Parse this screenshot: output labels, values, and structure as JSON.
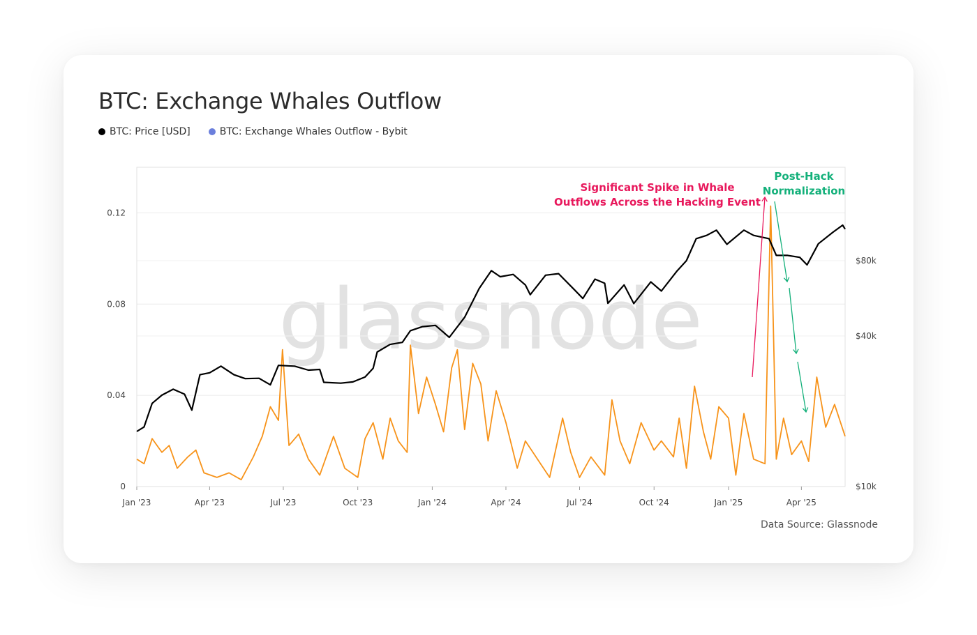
{
  "header": {
    "title": "BTC: Exchange Whales Outflow"
  },
  "legend": [
    {
      "label": "BTC: Price [USD]",
      "color": "#000000"
    },
    {
      "label": "BTC: Exchange Whales Outflow - Bybit",
      "color": "#6b7fdc"
    }
  ],
  "watermark": "glassnode",
  "source": "Data Source: Glassnode",
  "annotations": {
    "spike": [
      "Significant Spike in Whale",
      "Outflows Across the Hacking Event"
    ],
    "post_hack": [
      "Post-Hack",
      "Normalization"
    ],
    "spike_color": "#e8185c",
    "post_hack_color": "#13b07a"
  },
  "chart_data": {
    "type": "line",
    "x_ticks": [
      "Jan '23",
      "Apr '23",
      "Jul '23",
      "Oct '23",
      "Jan '24",
      "Apr '24",
      "Jul '24",
      "Oct '24",
      "Jan '25",
      "Apr '25"
    ],
    "y_left_ticks": [
      0,
      0.04,
      0.08,
      0.12
    ],
    "y_left_tick_labels": [
      "0",
      "0.04",
      "0.08",
      "0.12"
    ],
    "y_left_range": [
      0,
      0.14
    ],
    "y_right_ticks": [
      10000,
      40000,
      80000
    ],
    "y_right_tick_labels": [
      "$10k",
      "$40k",
      "$80k"
    ],
    "y_right_scale": "log",
    "x_range": [
      "2023-01-01",
      "2025-05-25"
    ],
    "series": [
      {
        "name": "BTC: Price [USD]",
        "axis": "right",
        "color": "#000000",
        "points": [
          [
            "2023-01-01",
            16600
          ],
          [
            "2023-01-10",
            17300
          ],
          [
            "2023-01-20",
            21500
          ],
          [
            "2023-02-01",
            23200
          ],
          [
            "2023-02-15",
            24500
          ],
          [
            "2023-03-01",
            23400
          ],
          [
            "2023-03-10",
            20200
          ],
          [
            "2023-03-20",
            28000
          ],
          [
            "2023-04-01",
            28500
          ],
          [
            "2023-04-15",
            30300
          ],
          [
            "2023-05-01",
            28000
          ],
          [
            "2023-05-15",
            27000
          ],
          [
            "2023-06-01",
            27100
          ],
          [
            "2023-06-15",
            25500
          ],
          [
            "2023-06-25",
            30500
          ],
          [
            "2023-07-15",
            30300
          ],
          [
            "2023-08-01",
            29200
          ],
          [
            "2023-08-15",
            29400
          ],
          [
            "2023-08-20",
            26100
          ],
          [
            "2023-09-10",
            25900
          ],
          [
            "2023-09-25",
            26200
          ],
          [
            "2023-10-10",
            27400
          ],
          [
            "2023-10-20",
            29700
          ],
          [
            "2023-10-25",
            34500
          ],
          [
            "2023-11-10",
            37000
          ],
          [
            "2023-11-25",
            37700
          ],
          [
            "2023-12-05",
            42000
          ],
          [
            "2023-12-20",
            43600
          ],
          [
            "2024-01-05",
            44100
          ],
          [
            "2024-01-22",
            39500
          ],
          [
            "2024-02-10",
            47500
          ],
          [
            "2024-02-28",
            62000
          ],
          [
            "2024-03-14",
            73000
          ],
          [
            "2024-03-25",
            69000
          ],
          [
            "2024-04-10",
            70500
          ],
          [
            "2024-04-25",
            64000
          ],
          [
            "2024-05-01",
            58500
          ],
          [
            "2024-05-20",
            70000
          ],
          [
            "2024-06-05",
            71000
          ],
          [
            "2024-06-25",
            61000
          ],
          [
            "2024-07-05",
            56500
          ],
          [
            "2024-07-20",
            67500
          ],
          [
            "2024-08-01",
            65000
          ],
          [
            "2024-08-05",
            54000
          ],
          [
            "2024-08-25",
            64000
          ],
          [
            "2024-09-06",
            53900
          ],
          [
            "2024-09-27",
            65800
          ],
          [
            "2024-10-10",
            60500
          ],
          [
            "2024-10-29",
            72500
          ],
          [
            "2024-11-10",
            80000
          ],
          [
            "2024-11-22",
            98000
          ],
          [
            "2024-12-05",
            101000
          ],
          [
            "2024-12-17",
            106000
          ],
          [
            "2024-12-30",
            93000
          ],
          [
            "2025-01-20",
            106000
          ],
          [
            "2025-02-01",
            101000
          ],
          [
            "2025-02-20",
            98000
          ],
          [
            "2025-03-01",
            84000
          ],
          [
            "2025-03-15",
            84000
          ],
          [
            "2025-03-30",
            82500
          ],
          [
            "2025-04-08",
            77000
          ],
          [
            "2025-04-22",
            93500
          ],
          [
            "2025-05-10",
            104000
          ],
          [
            "2025-05-22",
            111000
          ],
          [
            "2025-05-25",
            107000
          ]
        ]
      },
      {
        "name": "BTC: Exchange Whales Outflow - Bybit",
        "axis": "left",
        "color": "#f7931a",
        "points": [
          [
            "2023-01-01",
            0.012
          ],
          [
            "2023-01-10",
            0.01
          ],
          [
            "2023-01-20",
            0.021
          ],
          [
            "2023-02-01",
            0.015
          ],
          [
            "2023-02-10",
            0.018
          ],
          [
            "2023-02-20",
            0.008
          ],
          [
            "2023-03-05",
            0.013
          ],
          [
            "2023-03-15",
            0.016
          ],
          [
            "2023-03-25",
            0.006
          ],
          [
            "2023-04-10",
            0.004
          ],
          [
            "2023-04-25",
            0.006
          ],
          [
            "2023-05-10",
            0.003
          ],
          [
            "2023-05-25",
            0.013
          ],
          [
            "2023-06-05",
            0.022
          ],
          [
            "2023-06-15",
            0.035
          ],
          [
            "2023-06-25",
            0.029
          ],
          [
            "2023-06-30",
            0.06
          ],
          [
            "2023-07-08",
            0.018
          ],
          [
            "2023-07-20",
            0.023
          ],
          [
            "2023-08-01",
            0.012
          ],
          [
            "2023-08-15",
            0.005
          ],
          [
            "2023-09-01",
            0.022
          ],
          [
            "2023-09-15",
            0.008
          ],
          [
            "2023-10-01",
            0.004
          ],
          [
            "2023-10-10",
            0.021
          ],
          [
            "2023-10-20",
            0.028
          ],
          [
            "2023-11-01",
            0.012
          ],
          [
            "2023-11-10",
            0.03
          ],
          [
            "2023-11-20",
            0.02
          ],
          [
            "2023-12-01",
            0.015
          ],
          [
            "2023-12-05",
            0.062
          ],
          [
            "2023-12-15",
            0.032
          ],
          [
            "2023-12-25",
            0.048
          ],
          [
            "2024-01-05",
            0.036
          ],
          [
            "2024-01-15",
            0.024
          ],
          [
            "2024-01-25",
            0.052
          ],
          [
            "2024-02-01",
            0.06
          ],
          [
            "2024-02-10",
            0.025
          ],
          [
            "2024-02-20",
            0.054
          ],
          [
            "2024-03-01",
            0.045
          ],
          [
            "2024-03-10",
            0.02
          ],
          [
            "2024-03-20",
            0.042
          ],
          [
            "2024-04-01",
            0.028
          ],
          [
            "2024-04-15",
            0.008
          ],
          [
            "2024-04-25",
            0.02
          ],
          [
            "2024-05-10",
            0.012
          ],
          [
            "2024-05-25",
            0.004
          ],
          [
            "2024-06-10",
            0.03
          ],
          [
            "2024-06-20",
            0.015
          ],
          [
            "2024-07-01",
            0.004
          ],
          [
            "2024-07-15",
            0.013
          ],
          [
            "2024-08-01",
            0.005
          ],
          [
            "2024-08-10",
            0.038
          ],
          [
            "2024-08-20",
            0.02
          ],
          [
            "2024-09-01",
            0.01
          ],
          [
            "2024-09-15",
            0.028
          ],
          [
            "2024-10-01",
            0.016
          ],
          [
            "2024-10-10",
            0.02
          ],
          [
            "2024-10-25",
            0.013
          ],
          [
            "2024-11-01",
            0.03
          ],
          [
            "2024-11-10",
            0.008
          ],
          [
            "2024-11-20",
            0.044
          ],
          [
            "2024-12-01",
            0.024
          ],
          [
            "2024-12-10",
            0.012
          ],
          [
            "2024-12-20",
            0.035
          ],
          [
            "2025-01-01",
            0.03
          ],
          [
            "2025-01-10",
            0.005
          ],
          [
            "2025-01-20",
            0.032
          ],
          [
            "2025-02-01",
            0.012
          ],
          [
            "2025-02-15",
            0.01
          ],
          [
            "2025-02-22",
            0.123
          ],
          [
            "2025-03-01",
            0.012
          ],
          [
            "2025-03-10",
            0.03
          ],
          [
            "2025-03-20",
            0.014
          ],
          [
            "2025-04-01",
            0.02
          ],
          [
            "2025-04-10",
            0.011
          ],
          [
            "2025-04-20",
            0.048
          ],
          [
            "2025-05-01",
            0.026
          ],
          [
            "2025-05-12",
            0.036
          ],
          [
            "2025-05-25",
            0.022
          ]
        ]
      }
    ],
    "title": "BTC: Exchange Whales Outflow",
    "grid": true,
    "legend_position": "top-left"
  }
}
